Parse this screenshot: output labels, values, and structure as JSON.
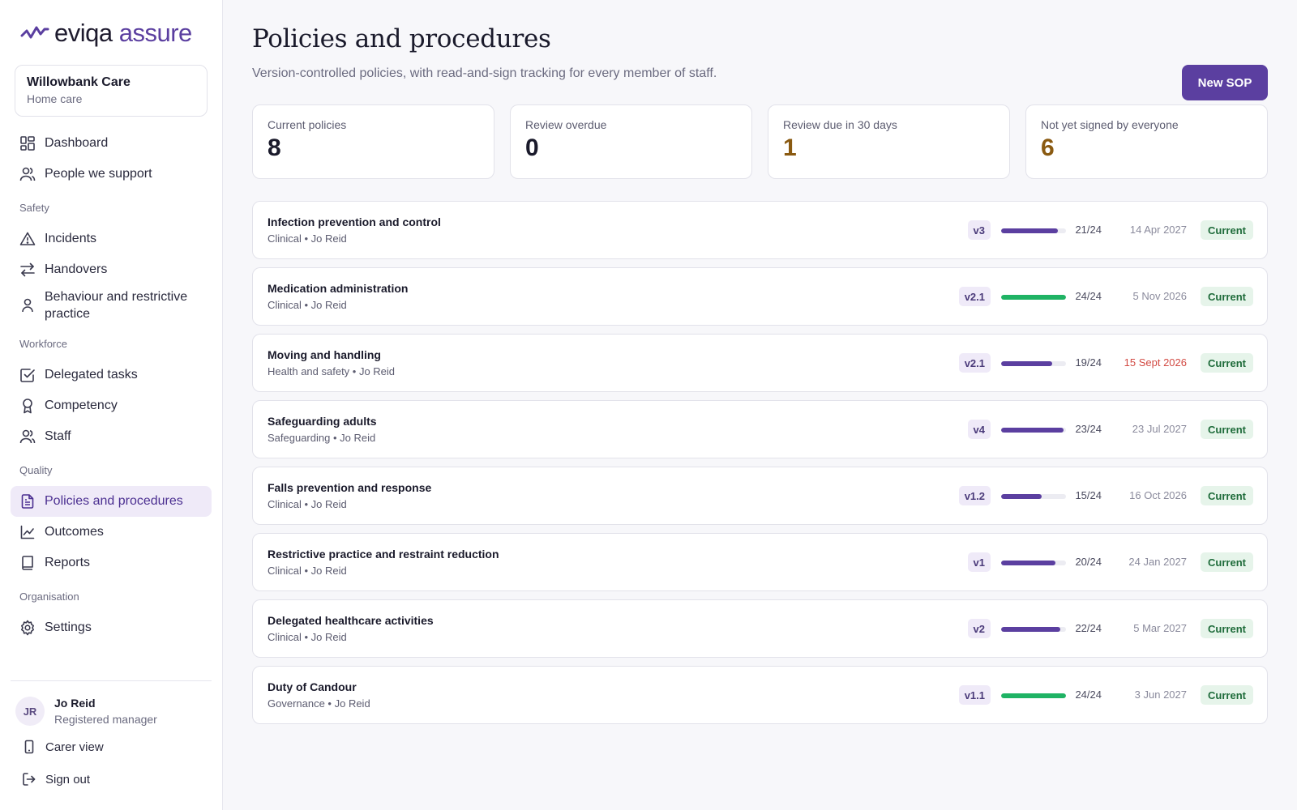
{
  "app": {
    "brand": "eviqa",
    "brand_suffix": "assure"
  },
  "org": {
    "name": "Willowbank Care",
    "type": "Home care"
  },
  "nav": {
    "dashboard": "Dashboard",
    "people": "People we support",
    "section_safety": "Safety",
    "incidents": "Incidents",
    "handovers": "Handovers",
    "behaviour": "Behaviour and restrictive practice",
    "section_workforce": "Workforce",
    "delegated": "Delegated tasks",
    "competency": "Competency",
    "staff": "Staff",
    "section_quality": "Quality",
    "policies": "Policies and procedures",
    "outcomes": "Outcomes",
    "reports": "Reports",
    "section_org": "Organisation",
    "settings": "Settings"
  },
  "user": {
    "initials": "JR",
    "name": "Jo Reid",
    "role": "Registered manager",
    "carer_view": "Carer view",
    "sign_out": "Sign out"
  },
  "page": {
    "title": "Policies and procedures",
    "subtitle": "Version-controlled policies, with read-and-sign tracking for every member of staff.",
    "new_button": "New SOP"
  },
  "stats": [
    {
      "label": "Current policies",
      "value": "8"
    },
    {
      "label": "Review overdue",
      "value": "0"
    },
    {
      "label": "Review due in 30 days",
      "value": "1"
    },
    {
      "label": "Not yet signed by everyone",
      "value": "6"
    }
  ],
  "colors": {
    "accent": "#5b3fa0",
    "complete": "#1fb364",
    "warn": "#8a5a11",
    "overdue": "#d24a43"
  },
  "policies": [
    {
      "title": "Infection prevention and control",
      "meta": "Clinical • Jo Reid",
      "version": "v3",
      "signed": 21,
      "total": 24,
      "count": "21/24",
      "review": "14 Apr 2027",
      "status": "Current"
    },
    {
      "title": "Medication administration",
      "meta": "Clinical • Jo Reid",
      "version": "v2.1",
      "signed": 24,
      "total": 24,
      "count": "24/24",
      "review": "5 Nov 2026",
      "status": "Current"
    },
    {
      "title": "Moving and handling",
      "meta": "Health and safety • Jo Reid",
      "version": "v2.1",
      "signed": 19,
      "total": 24,
      "count": "19/24",
      "review": "15 Sept 2026",
      "status": "Current",
      "overdue": true
    },
    {
      "title": "Safeguarding adults",
      "meta": "Safeguarding • Jo Reid",
      "version": "v4",
      "signed": 23,
      "total": 24,
      "count": "23/24",
      "review": "23 Jul 2027",
      "status": "Current"
    },
    {
      "title": "Falls prevention and response",
      "meta": "Clinical • Jo Reid",
      "version": "v1.2",
      "signed": 15,
      "total": 24,
      "count": "15/24",
      "review": "16 Oct 2026",
      "status": "Current"
    },
    {
      "title": "Restrictive practice and restraint reduction",
      "meta": "Clinical • Jo Reid",
      "version": "v1",
      "signed": 20,
      "total": 24,
      "count": "20/24",
      "review": "24 Jan 2027",
      "status": "Current"
    },
    {
      "title": "Delegated healthcare activities",
      "meta": "Clinical • Jo Reid",
      "version": "v2",
      "signed": 22,
      "total": 24,
      "count": "22/24",
      "review": "5 Mar 2027",
      "status": "Current"
    },
    {
      "title": "Duty of Candour",
      "meta": "Governance • Jo Reid",
      "version": "v1.1",
      "signed": 24,
      "total": 24,
      "count": "24/24",
      "review": "3 Jun 2027",
      "status": "Current"
    }
  ]
}
